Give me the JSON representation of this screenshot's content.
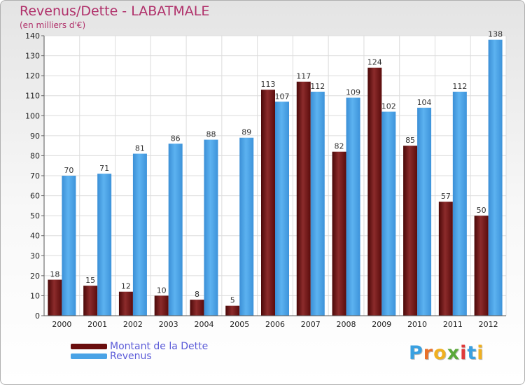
{
  "chart_data": {
    "type": "bar",
    "title": "Revenus/Dette - LABATMALE",
    "subtitle": "(en milliers d'€)",
    "categories": [
      "2000",
      "2001",
      "2002",
      "2003",
      "2004",
      "2005",
      "2006",
      "2007",
      "2008",
      "2009",
      "2010",
      "2011",
      "2012"
    ],
    "series": [
      {
        "name": "Montant de la Dette",
        "color": "#7a1a1a",
        "values": [
          18,
          15,
          12,
          10,
          8,
          5,
          113,
          117,
          82,
          124,
          85,
          57,
          50
        ]
      },
      {
        "name": "Revenus",
        "color": "#4aa3e6",
        "values": [
          70,
          71,
          81,
          86,
          88,
          89,
          107,
          112,
          109,
          102,
          104,
          112,
          138
        ]
      }
    ],
    "ylim": [
      0,
      140
    ],
    "yticks": [
      0,
      10,
      20,
      30,
      40,
      50,
      60,
      70,
      80,
      90,
      100,
      110,
      120,
      130,
      140
    ],
    "grid": true,
    "legend": "bottom-left"
  },
  "legend": {
    "debt_label": "Montant de la Dette",
    "revenue_label": "Revenus"
  },
  "brand": {
    "logo_text": "Proxiti"
  }
}
